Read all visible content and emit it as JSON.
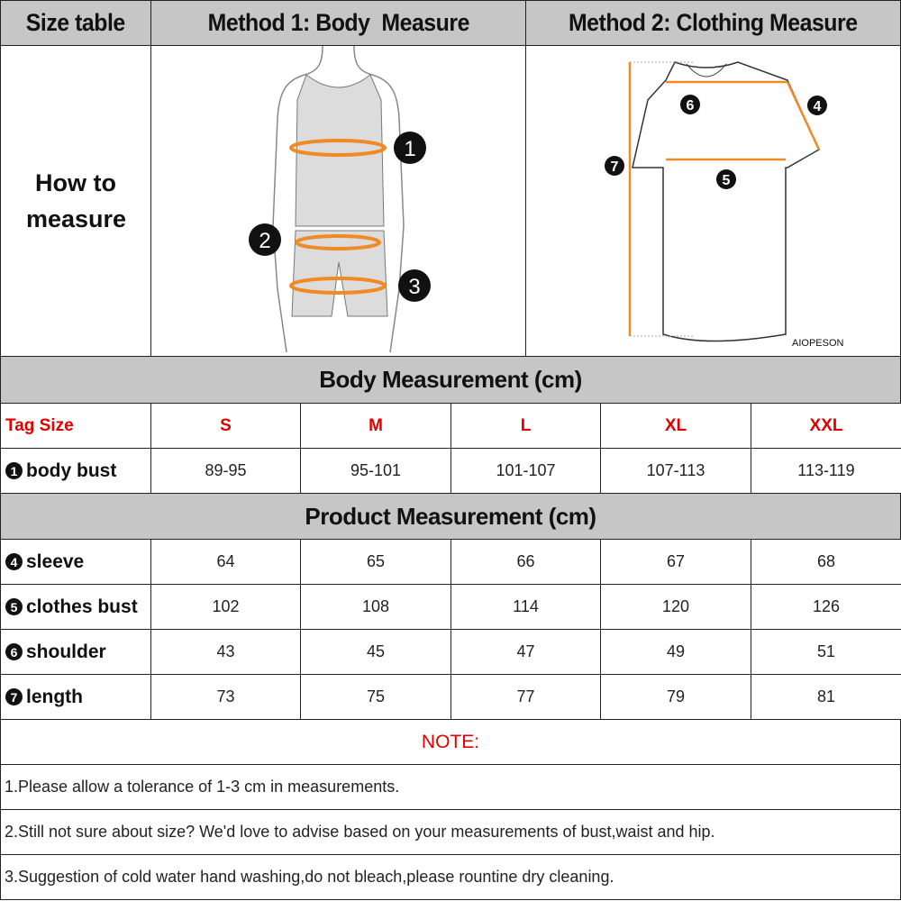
{
  "header": {
    "size_table": "Size table",
    "method1": "Method 1: Body  Measure",
    "method2": "Method 2: Clothing Measure"
  },
  "how_to_measure": "How to measure",
  "body_figure_markers": [
    "1",
    "2",
    "3"
  ],
  "shirt_figure_markers": [
    "4",
    "5",
    "6",
    "7"
  ],
  "brand_logo": "AIOPESON",
  "body_section": {
    "title": "Body Measurement (cm)",
    "tag_label": "Tag Size",
    "sizes": [
      "S",
      "M",
      "L",
      "XL",
      "XXL"
    ],
    "rows": [
      {
        "marker": "1",
        "label": "body bust",
        "values": [
          "89-95",
          "95-101",
          "101-107",
          "107-113",
          "113-119"
        ]
      }
    ]
  },
  "product_section": {
    "title": "Product Measurement (cm)",
    "rows": [
      {
        "marker": "4",
        "label": "sleeve",
        "values": [
          "64",
          "65",
          "66",
          "67",
          "68"
        ]
      },
      {
        "marker": "5",
        "label": "clothes bust",
        "values": [
          "102",
          "108",
          "114",
          "120",
          "126"
        ]
      },
      {
        "marker": "6",
        "label": "shoulder",
        "values": [
          "43",
          "45",
          "47",
          "49",
          "51"
        ]
      },
      {
        "marker": "7",
        "label": "length",
        "values": [
          "73",
          "75",
          "77",
          "79",
          "81"
        ]
      }
    ]
  },
  "note": {
    "title": "NOTE:",
    "lines": [
      "1.Please allow a tolerance of 1-3 cm in measurements.",
      "2.Still not sure about size? We'd love to advise based on your measurements of bust,waist and hip.",
      "3.Suggestion of cold water hand washing,do not bleach,please rountine dry cleaning."
    ]
  },
  "colors": {
    "header_bg": "#c6c6c6",
    "accent_red": "#e00000",
    "measure_orange": "#f08a24"
  }
}
